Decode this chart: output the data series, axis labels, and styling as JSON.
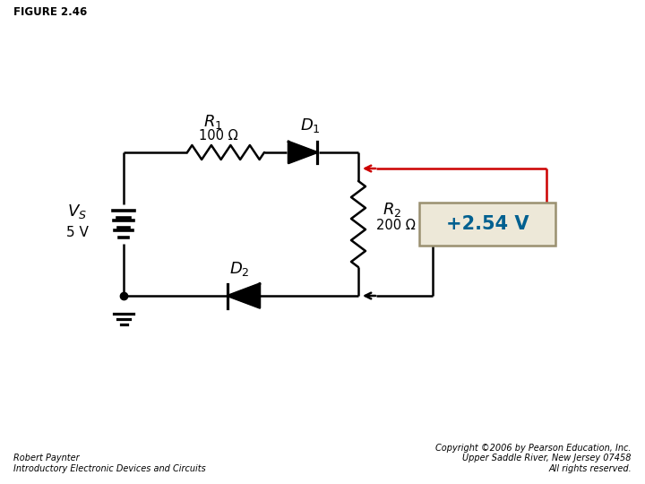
{
  "title": "FIGURE 2.46",
  "voltage_value": "5 V",
  "R1_value": "100 Ω",
  "R2_value": "200 Ω",
  "voltage_box": "+2.54 V",
  "author": "Robert Paynter",
  "book": "Introductory Electronic Devices and Circuits",
  "copyright": "Copyright ©2006 by Pearson Education, Inc.\nUpper Saddle River, New Jersey 07458\nAll rights reserved.",
  "bg_color": "#ffffff",
  "line_color": "#000000",
  "red_color": "#cc0000",
  "box_bg": "#ede8d8",
  "box_edge": "#9a9070",
  "teal_color": "#006090"
}
